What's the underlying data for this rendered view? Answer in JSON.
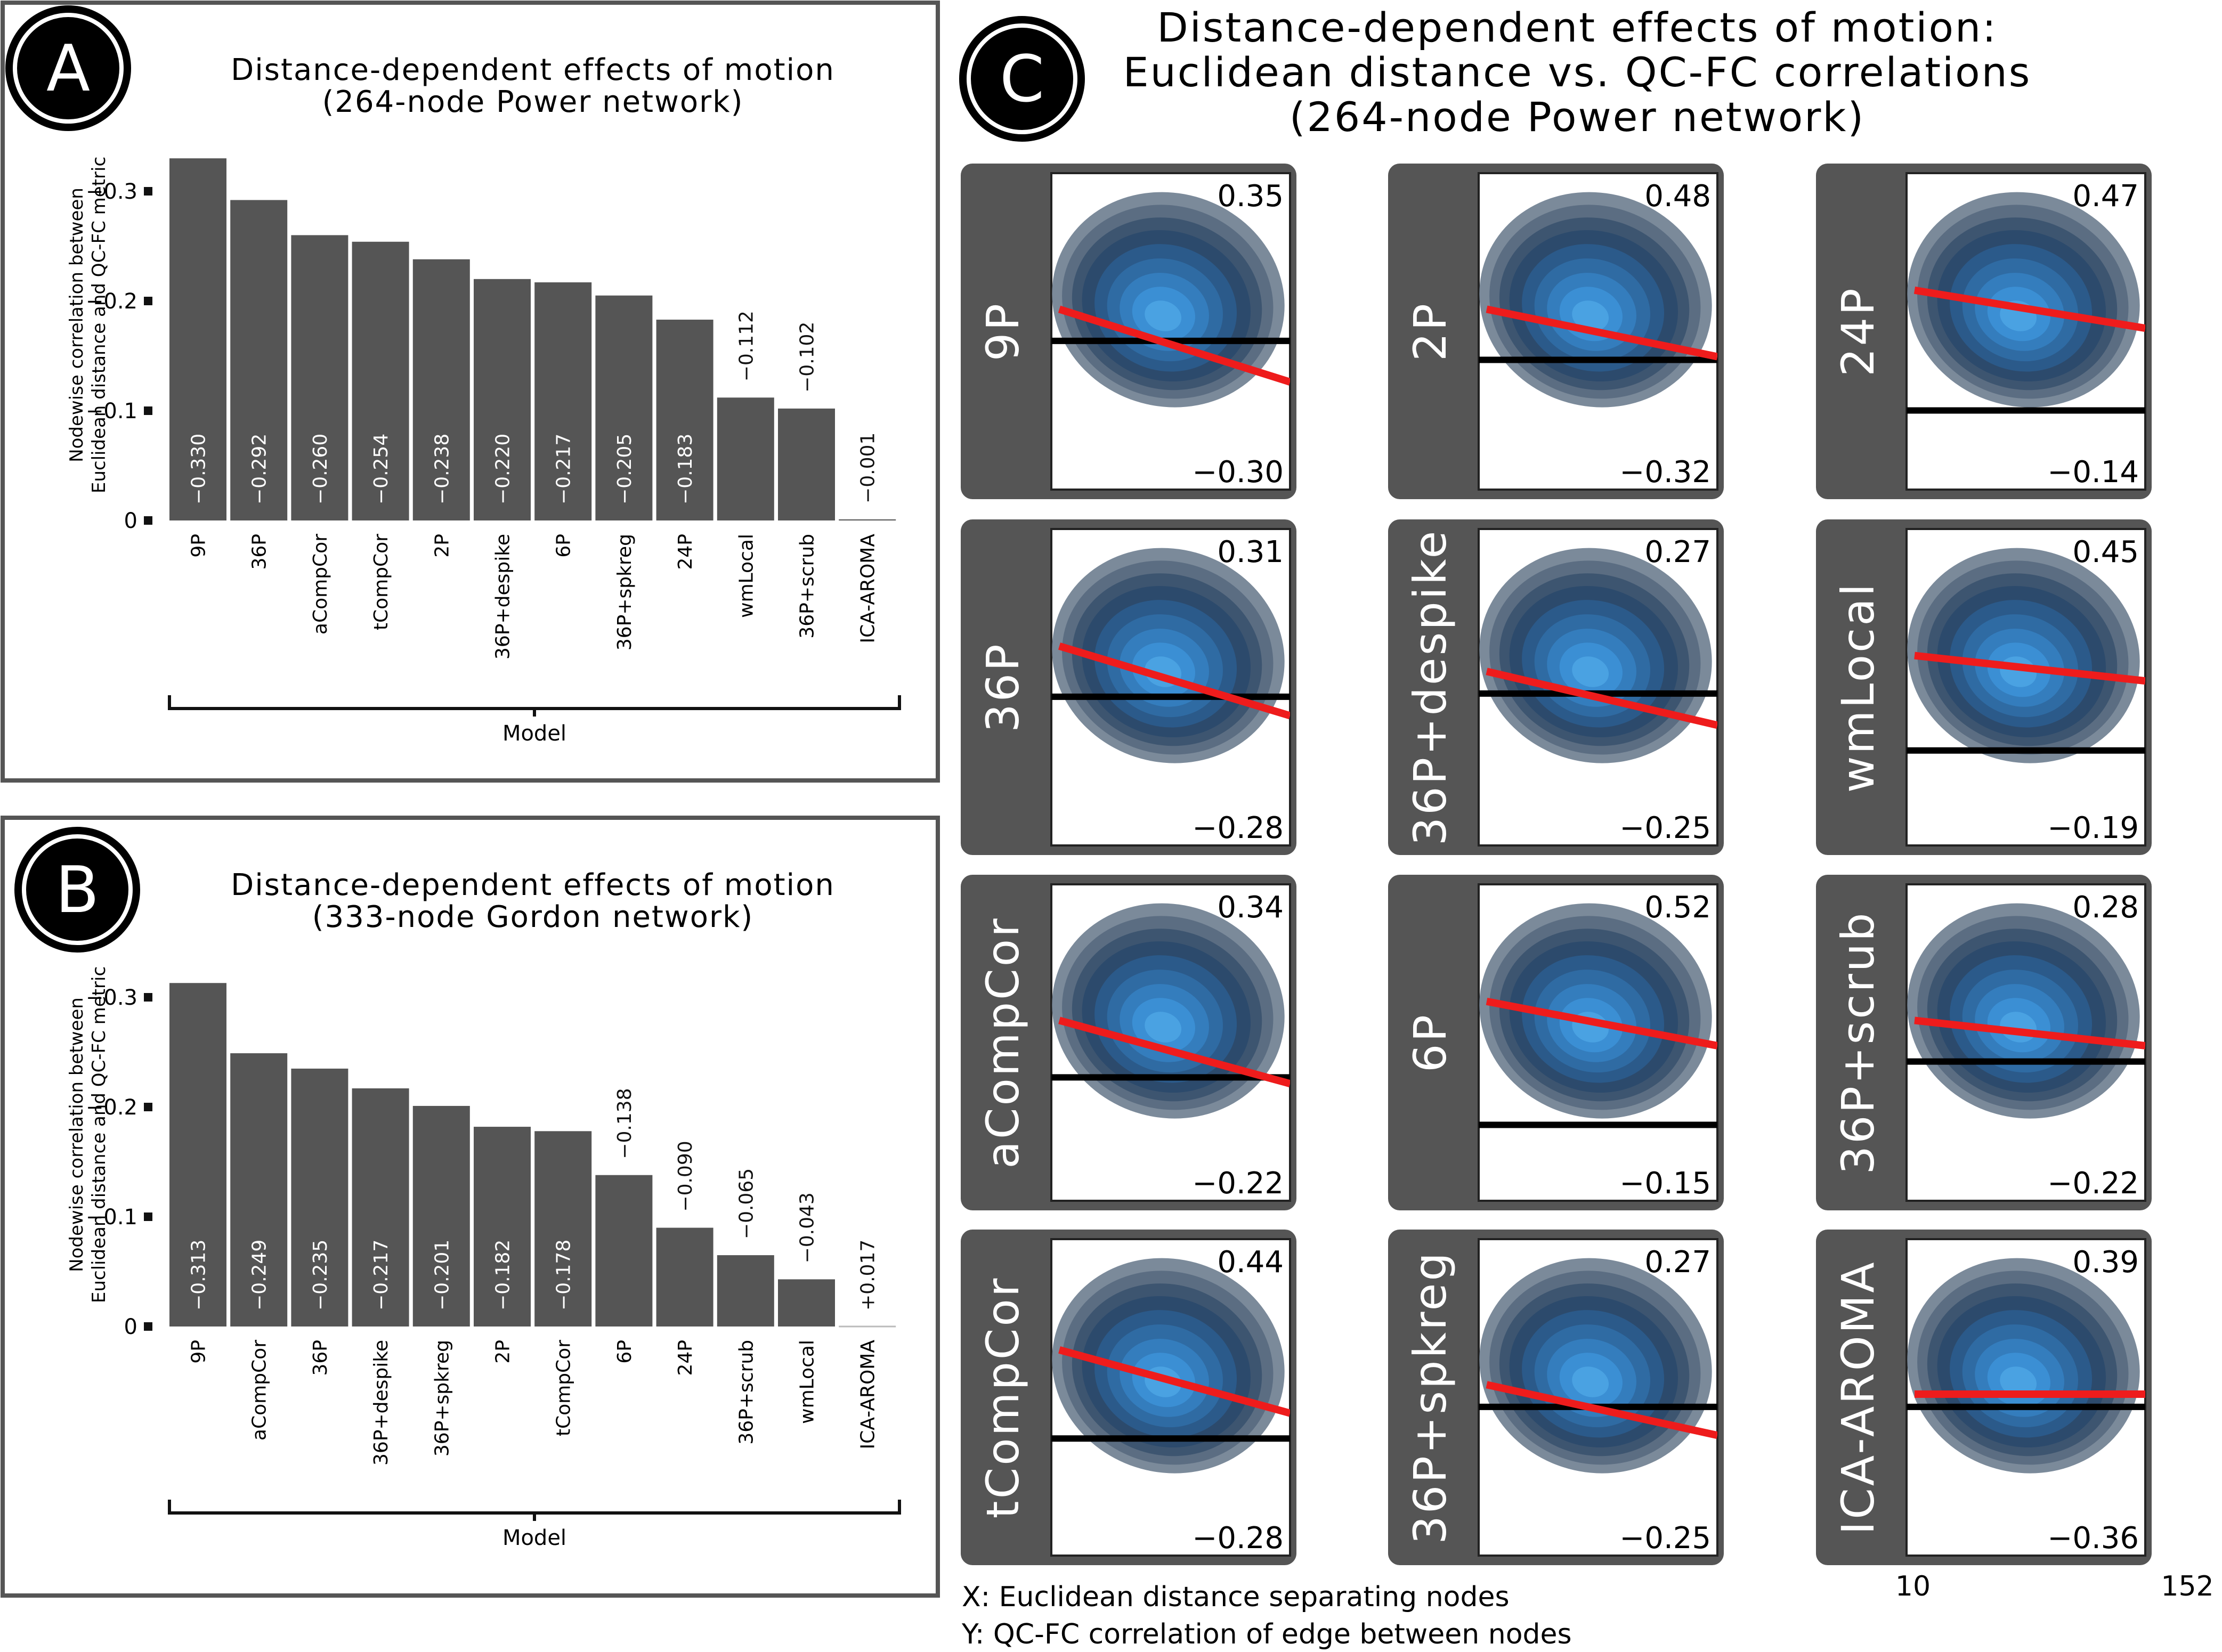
{
  "panels": {
    "A": {
      "badge": "A",
      "title_line1": "Distance-dependent effects of motion",
      "title_line2": "(264-node Power network)",
      "ylabel_line1": "Nodewise correlation between",
      "ylabel_line2": "Euclidean distance and QC-FC metric",
      "xlabel": "Model"
    },
    "B": {
      "badge": "B",
      "title_line1": "Distance-dependent effects of motion",
      "title_line2": "(333-node Gordon network)",
      "ylabel_line1": "Nodewise correlation between",
      "ylabel_line2": "Euclidean distance and QC-FC metric",
      "xlabel": "Model"
    },
    "C": {
      "badge": "C",
      "title_line1": "Distance-dependent effects of motion:",
      "title_line2": "Euclidean distance vs. QC-FC correlations",
      "title_line3": "(264-node Power network)",
      "x_note": "X: Euclidean distance separating nodes",
      "y_note": "Y: QC-FC correlation of edge between nodes",
      "x_tick_min": "10",
      "x_tick_max": "152"
    }
  },
  "colors": {
    "bar": "#555555",
    "frame": "#555555",
    "fit_line": "#ee1c1c",
    "zero_line": "#000000",
    "density_outer": "#7a8a9c",
    "density_inner": "#3a8fd8"
  },
  "chart_data": [
    {
      "panel": "A",
      "type": "bar",
      "title": "Distance-dependent effects of motion (264-node Power network)",
      "xlabel": "Model",
      "ylabel": "Nodewise correlation between Euclidean distance and QC-FC metric",
      "ylim": [
        0,
        -0.35
      ],
      "yticks": [
        0,
        -0.1,
        -0.2,
        -0.3
      ],
      "ytick_labels": [
        "0",
        "−0.1",
        "−0.2",
        "−0.3"
      ],
      "categories": [
        "9P",
        "36P",
        "aCompCor",
        "tCompCor",
        "2P",
        "36P+despike",
        "6P",
        "36P+spkreg",
        "24P",
        "wmLocal",
        "36P+scrub",
        "ICA-AROMA"
      ],
      "values": [
        -0.33,
        -0.292,
        -0.26,
        -0.254,
        -0.238,
        -0.22,
        -0.217,
        -0.205,
        -0.183,
        -0.112,
        -0.102,
        -0.001
      ],
      "labels": [
        "−0.330",
        "−0.292",
        "−0.260",
        "−0.254",
        "−0.238",
        "−0.220",
        "−0.217",
        "−0.205",
        "−0.183",
        "−0.112",
        "−0.102",
        "−0.001"
      ]
    },
    {
      "panel": "B",
      "type": "bar",
      "title": "Distance-dependent effects of motion (333-node Gordon network)",
      "xlabel": "Model",
      "ylabel": "Nodewise correlation between Euclidean distance and QC-FC metric",
      "ylim": [
        0,
        -0.35
      ],
      "yticks": [
        0,
        -0.1,
        -0.2,
        -0.3
      ],
      "ytick_labels": [
        "0",
        "−0.1",
        "−0.2",
        "−0.3"
      ],
      "categories": [
        "9P",
        "aCompCor",
        "36P",
        "36P+despike",
        "36P+spkreg",
        "2P",
        "tCompCor",
        "6P",
        "24P",
        "36P+scrub",
        "wmLocal",
        "ICA-AROMA"
      ],
      "values": [
        -0.313,
        -0.249,
        -0.235,
        -0.217,
        -0.201,
        -0.182,
        -0.178,
        -0.138,
        -0.09,
        -0.065,
        -0.043,
        0.017
      ],
      "labels": [
        "−0.313",
        "−0.249",
        "−0.235",
        "−0.217",
        "−0.201",
        "−0.182",
        "−0.178",
        "−0.138",
        "−0.090",
        "−0.065",
        "−0.043",
        "+0.017"
      ]
    },
    {
      "panel": "C",
      "type": "scatter",
      "title": "Distance-dependent effects of motion: Euclidean distance vs. QC-FC correlations (264-node Power network)",
      "xlabel": "Euclidean distance separating nodes",
      "ylabel": "QC-FC correlation of edge between nodes",
      "xlim": [
        10,
        152
      ],
      "subplots": [
        {
          "name": "9P",
          "ymax": "0.35",
          "ymin": "−0.30",
          "zero_frac": 0.53,
          "fit_left": 0.43,
          "fit_right": 0.66
        },
        {
          "name": "2P",
          "ymax": "0.48",
          "ymin": "−0.32",
          "zero_frac": 0.59,
          "fit_left": 0.43,
          "fit_right": 0.58
        },
        {
          "name": "24P",
          "ymax": "0.47",
          "ymin": "−0.14",
          "zero_frac": 0.75,
          "fit_left": 0.37,
          "fit_right": 0.49
        },
        {
          "name": "36P",
          "ymax": "0.31",
          "ymin": "−0.28",
          "zero_frac": 0.53,
          "fit_left": 0.37,
          "fit_right": 0.59
        },
        {
          "name": "36P+despike",
          "ymax": "0.27",
          "ymin": "−0.25",
          "zero_frac": 0.52,
          "fit_left": 0.45,
          "fit_right": 0.62
        },
        {
          "name": "wmLocal",
          "ymax": "0.45",
          "ymin": "−0.19",
          "zero_frac": 0.7,
          "fit_left": 0.4,
          "fit_right": 0.48
        },
        {
          "name": "aCompCor",
          "ymax": "0.34",
          "ymin": "−0.22",
          "zero_frac": 0.61,
          "fit_left": 0.43,
          "fit_right": 0.63
        },
        {
          "name": "6P",
          "ymax": "0.52",
          "ymin": "−0.15",
          "zero_frac": 0.76,
          "fit_left": 0.37,
          "fit_right": 0.51
        },
        {
          "name": "36P+scrub",
          "ymax": "0.28",
          "ymin": "−0.22",
          "zero_frac": 0.56,
          "fit_left": 0.43,
          "fit_right": 0.51
        },
        {
          "name": "tCompCor",
          "ymax": "0.44",
          "ymin": "−0.28",
          "zero_frac": 0.63,
          "fit_left": 0.35,
          "fit_right": 0.55
        },
        {
          "name": "36P+spkreg",
          "ymax": "0.27",
          "ymin": "−0.25",
          "zero_frac": 0.53,
          "fit_left": 0.46,
          "fit_right": 0.62
        },
        {
          "name": "ICA-AROMA",
          "ymax": "0.39",
          "ymin": "−0.36",
          "zero_frac": 0.53,
          "fit_left": 0.49,
          "fit_right": 0.49
        }
      ]
    }
  ]
}
